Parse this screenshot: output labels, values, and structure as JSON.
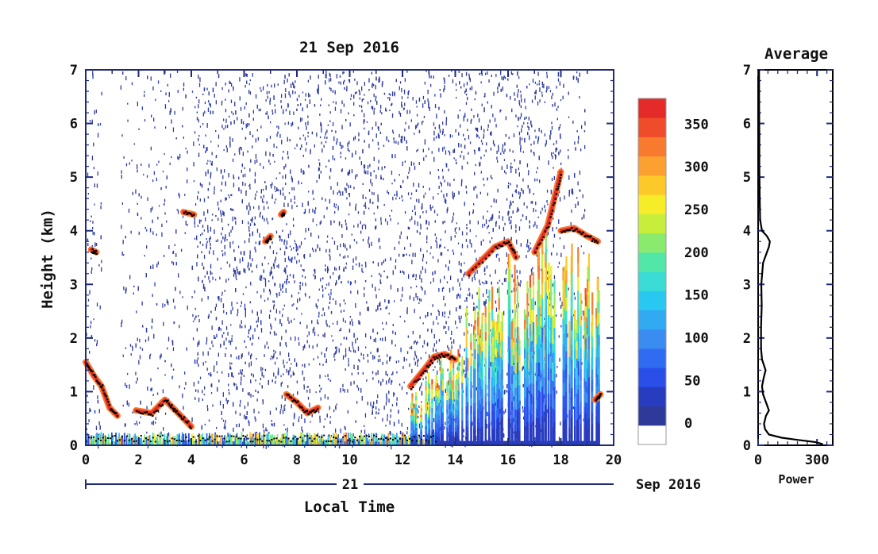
{
  "chart_data": [
    {
      "type": "heatmap",
      "title": "21 Sep 2016",
      "xlabel": "Local Time",
      "ylabel": "Height (km)",
      "xlim": [
        0,
        20
      ],
      "ylim": [
        0,
        7
      ],
      "x_ticks": [
        "0",
        "2",
        "4",
        "6",
        "8",
        "10",
        "12",
        "14",
        "16",
        "18",
        "20"
      ],
      "y_ticks": [
        "0",
        "1",
        "2",
        "3",
        "4",
        "5",
        "6",
        "7"
      ],
      "date_axis": {
        "day": "21",
        "month_year": "Sep 2016"
      },
      "colorbar": {
        "ticks": [
          "0",
          "50",
          "100",
          "150",
          "200",
          "250",
          "300",
          "350"
        ],
        "range": [
          -25,
          380
        ],
        "colors": [
          "#ffffff",
          "#2e3a9a",
          "#283cc0",
          "#2a4fe8",
          "#2f6cf2",
          "#3a8cf0",
          "#32aaf2",
          "#28c8f0",
          "#3cdcd6",
          "#52e6a8",
          "#8aea6e",
          "#c8ee3c",
          "#f6ec28",
          "#fdc82a",
          "#fba031",
          "#f77a2f",
          "#ef4c2c",
          "#e52a2a"
        ]
      },
      "features": {
        "cloud_base_tracks": [
          {
            "x": [
              0.0,
              0.3,
              0.6,
              0.9,
              1.2
            ],
            "y": [
              1.55,
              1.3,
              1.1,
              0.7,
              0.55
            ]
          },
          {
            "x": [
              0.2,
              0.4
            ],
            "y": [
              3.65,
              3.6
            ]
          },
          {
            "x": [
              1.9,
              2.5,
              3.0,
              3.3,
              3.6,
              4.0
            ],
            "y": [
              0.65,
              0.6,
              0.85,
              0.7,
              0.55,
              0.35
            ]
          },
          {
            "x": [
              7.6,
              8.0,
              8.4,
              8.8
            ],
            "y": [
              0.95,
              0.8,
              0.6,
              0.7
            ]
          },
          {
            "x": [
              6.8,
              7.0
            ],
            "y": [
              3.8,
              3.9
            ]
          },
          {
            "x": [
              7.4,
              7.5
            ],
            "y": [
              4.3,
              4.35
            ]
          },
          {
            "x": [
              3.7,
              4.1
            ],
            "y": [
              4.35,
              4.3
            ]
          },
          {
            "x": [
              12.3,
              12.8,
              13.2,
              13.6,
              14.0
            ],
            "y": [
              1.1,
              1.4,
              1.65,
              1.7,
              1.6
            ]
          },
          {
            "x": [
              14.5,
              15.5,
              16.0,
              16.3
            ],
            "y": [
              3.2,
              3.7,
              3.8,
              3.5
            ]
          },
          {
            "x": [
              17.0,
              17.5,
              17.8,
              18.0
            ],
            "y": [
              3.6,
              4.1,
              4.7,
              5.1
            ]
          },
          {
            "x": [
              18.0,
              18.5,
              19.0,
              19.4
            ],
            "y": [
              4.0,
              4.05,
              3.9,
              3.8
            ]
          },
          {
            "x": [
              19.3,
              19.5
            ],
            "y": [
              0.85,
              0.95
            ]
          }
        ],
        "surface_layer": {
          "x": [
            0.0,
            13.3
          ],
          "y": [
            0.05,
            0.25
          ]
        },
        "convective_columns": [
          {
            "x": 12.5,
            "top": 1.0
          },
          {
            "x": 13.0,
            "top": 1.5
          },
          {
            "x": 13.5,
            "top": 1.8
          },
          {
            "x": 14.0,
            "top": 2.1
          },
          {
            "x": 14.5,
            "top": 2.6
          },
          {
            "x": 15.0,
            "top": 3.3
          },
          {
            "x": 15.5,
            "top": 3.5
          },
          {
            "x": 16.0,
            "top": 3.6
          },
          {
            "x": 16.5,
            "top": 3.3
          },
          {
            "x": 17.0,
            "top": 3.7
          },
          {
            "x": 17.5,
            "top": 4.0
          },
          {
            "x": 18.3,
            "top": 3.8
          },
          {
            "x": 18.8,
            "top": 3.7
          },
          {
            "x": 19.2,
            "top": 3.6
          }
        ],
        "noise_coverage": {
          "x": [
            0.0,
            18.9
          ],
          "y": [
            0.0,
            7.0
          ]
        }
      }
    },
    {
      "type": "line",
      "title": "Average",
      "xlabel": "Power",
      "ylabel": "",
      "xlim": [
        0,
        380
      ],
      "ylim": [
        0,
        7
      ],
      "x_ticks": [
        "0",
        "300"
      ],
      "y_ticks": [
        "0",
        "1",
        "2",
        "3",
        "4",
        "5",
        "6",
        "7"
      ],
      "series": [
        {
          "x": [
            330,
            290,
            200,
            120,
            55,
            35,
            30,
            40,
            55,
            40,
            25,
            20,
            28,
            38,
            20,
            15,
            15,
            18,
            16,
            25,
            45,
            55,
            60,
            45,
            20,
            10,
            8,
            6,
            6,
            5,
            5
          ],
          "y": [
            0.02,
            0.06,
            0.1,
            0.14,
            0.2,
            0.3,
            0.4,
            0.55,
            0.65,
            0.8,
            0.95,
            1.1,
            1.25,
            1.4,
            1.6,
            1.8,
            2.2,
            2.6,
            3.0,
            3.4,
            3.6,
            3.7,
            3.8,
            3.9,
            4.0,
            4.2,
            4.6,
            5.2,
            5.8,
            6.4,
            7.0
          ]
        }
      ]
    }
  ]
}
